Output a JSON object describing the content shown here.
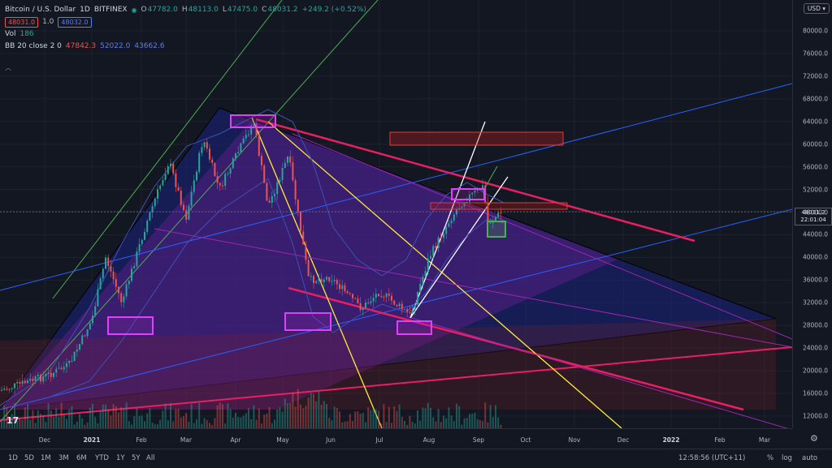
{
  "header": {
    "symbol": "Bitcoin / U.S. Dollar",
    "interval": "1D",
    "exchange": "BITFINEX",
    "open_label": "O",
    "open": "47782.0",
    "high_label": "H",
    "high": "48113.0",
    "low_label": "L",
    "low": "47475.0",
    "close_label": "C",
    "close": "48031.2",
    "change": "+249.2 (+0.52%)",
    "sell_price": "48031.0",
    "spread": "1.0",
    "buy_price": "48032.0"
  },
  "indicators": {
    "vol_label": "Vol",
    "vol_value": "186",
    "bb_label": "BB 20 close 2 0",
    "bb_basis": "47842.3",
    "bb_upper": "52022.0",
    "bb_lower": "43662.6"
  },
  "price_axis": {
    "currency": "USD",
    "labels": [
      "80000.0",
      "76000.0",
      "72000.0",
      "68000.0",
      "64000.0",
      "60000.0",
      "56000.0",
      "52000.0",
      "48000.0",
      "44000.0",
      "40000.0",
      "36000.0",
      "32000.0",
      "28000.0",
      "24000.0",
      "20000.0",
      "16000.0",
      "12000.0"
    ],
    "current_price": "48031.2",
    "current_time": "22:01:04"
  },
  "time_axis": {
    "labels": [
      {
        "text": "Dec",
        "bold": false
      },
      {
        "text": "2021",
        "bold": true
      },
      {
        "text": "Feb",
        "bold": false
      },
      {
        "text": "Mar",
        "bold": false
      },
      {
        "text": "Apr",
        "bold": false
      },
      {
        "text": "May",
        "bold": false
      },
      {
        "text": "Jun",
        "bold": false
      },
      {
        "text": "Jul",
        "bold": false
      },
      {
        "text": "Aug",
        "bold": false
      },
      {
        "text": "Sep",
        "bold": false
      },
      {
        "text": "Oct",
        "bold": false
      },
      {
        "text": "Nov",
        "bold": false
      },
      {
        "text": "Dec",
        "bold": false
      },
      {
        "text": "2022",
        "bold": true
      },
      {
        "text": "Feb",
        "bold": false
      },
      {
        "text": "Mar",
        "bold": false
      }
    ]
  },
  "bottom_bar": {
    "ranges": [
      "1D",
      "5D",
      "1M",
      "3M",
      "6M",
      "YTD",
      "1Y",
      "5Y",
      "All"
    ],
    "clock": "12:58:56 (UTC+11)",
    "percent": "%",
    "log": "log",
    "auto": "auto"
  },
  "colors": {
    "background": "#131722",
    "up": "#26a69a",
    "down": "#ef5350",
    "magenta_line": "#e91e63",
    "yellow_line": "#ffeb3b",
    "blue_line": "#2962ff",
    "green_line": "#4caf50",
    "purple_line": "#9c27b0"
  },
  "chart_data": {
    "type": "candlestick",
    "symbol": "Bitcoin / U.S. Dollar",
    "interval": "1D",
    "ylim": [
      10000,
      82000
    ],
    "x_ticks": [
      "Dec",
      "2021",
      "Feb",
      "Mar",
      "Apr",
      "May",
      "Jun",
      "Jul",
      "Aug",
      "Sep",
      "Oct",
      "Nov",
      "Dec",
      "2022",
      "Feb",
      "Mar"
    ],
    "close_path": [
      {
        "t": "Nov 15",
        "v": 16500
      },
      {
        "t": "Dec 1",
        "v": 19000
      },
      {
        "t": "Dec 15",
        "v": 21000
      },
      {
        "t": "Jan 1",
        "v": 29000
      },
      {
        "t": "Jan 8",
        "v": 40000
      },
      {
        "t": "Jan 22",
        "v": 32000
      },
      {
        "t": "Feb 8",
        "v": 46000
      },
      {
        "t": "Feb 21",
        "v": 57000
      },
      {
        "t": "Mar 1",
        "v": 47000
      },
      {
        "t": "Mar 13",
        "v": 61000
      },
      {
        "t": "Mar 25",
        "v": 52000
      },
      {
        "t": "Apr 14",
        "v": 64000
      },
      {
        "t": "Apr 25",
        "v": 49000
      },
      {
        "t": "May 8",
        "v": 58000
      },
      {
        "t": "May 19",
        "v": 36000
      },
      {
        "t": "Jun 1",
        "v": 36500
      },
      {
        "t": "Jun 22",
        "v": 31000
      },
      {
        "t": "Jul 1",
        "v": 34000
      },
      {
        "t": "Jul 20",
        "v": 29800
      },
      {
        "t": "Aug 1",
        "v": 40000
      },
      {
        "t": "Aug 14",
        "v": 47000
      },
      {
        "t": "Aug 23",
        "v": 50000
      },
      {
        "t": "Sep 6",
        "v": 52500
      },
      {
        "t": "Sep 8",
        "v": 46000
      },
      {
        "t": "Sep 18",
        "v": 48031
      }
    ]
  }
}
